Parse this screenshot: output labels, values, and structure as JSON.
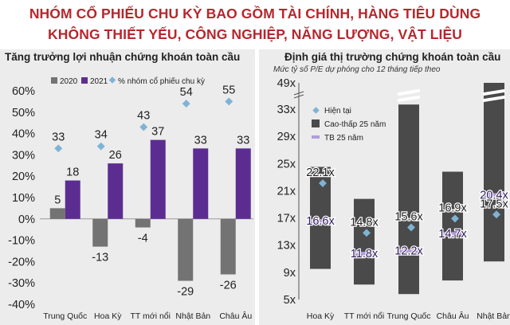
{
  "headline": {
    "line1": "NHÓM CỔ PHIẾU CHU KỲ BAO GỒM TÀI CHÍNH, HÀNG TIÊU DÙNG",
    "line2": "KHÔNG THIẾT YẾU, CÔNG NGHIỆP, NĂNG LƯỢNG, VẬT LIỆU"
  },
  "colors": {
    "headline": "#b5272d",
    "bar_2020": "#737373",
    "bar_2021": "#5c2d91",
    "marker": "#7fb3d5",
    "range_bar": "#4a4a4a",
    "avg": "#b39ddb",
    "panel_bg": "#ececec"
  },
  "chart_data": [
    {
      "type": "bar",
      "title": "Tăng trưởng lợi nhuận chứng khoán toàn cầu",
      "categories": [
        "Trung Quốc",
        "Hoa Kỳ",
        "TT mới nổi",
        "Nhật Bản",
        "Châu Âu"
      ],
      "series": [
        {
          "name": "2020",
          "values": [
            5,
            -13,
            -4,
            -29,
            -26
          ]
        },
        {
          "name": "2021",
          "values": [
            18,
            26,
            37,
            33,
            33
          ]
        },
        {
          "name": "% nhóm cổ phiếu chu kỳ",
          "kind": "marker",
          "values": [
            33,
            34,
            43,
            54,
            55
          ]
        }
      ],
      "ylim": [
        -40,
        60
      ],
      "yticks": [
        "60%",
        "50%",
        "40%",
        "30%",
        "20%",
        "10%",
        "0%",
        "-10%",
        "-20%",
        "-30%",
        "-40%"
      ],
      "legend_position": "top"
    },
    {
      "type": "range",
      "title": "Định giá thị trường chứng khoán toàn cầu",
      "subtitle": "Mức tỷ số P/E dự phóng cho 12 tháng tiếp theo",
      "categories": [
        "Hoa Kỳ",
        "TT mới nổi",
        "Trung Quốc",
        "Châu Âu",
        "Nhật Bản"
      ],
      "range_low": [
        9.5,
        7.2,
        5.8,
        7.8,
        10.6
      ],
      "range_high": [
        24.5,
        19.8,
        35.8,
        23.8,
        49
      ],
      "current": [
        22.1,
        14.8,
        15.6,
        16.9,
        17.5
      ],
      "average": [
        16.6,
        11.8,
        12.2,
        14.7,
        20.4
      ],
      "current_labels": [
        "22.1x",
        "14.8x",
        "15.6x",
        "16.9x",
        "17.5x"
      ],
      "average_labels": [
        "16.6x",
        "11.8x",
        "12.2x",
        "14.7x",
        "20.4x"
      ],
      "legend": [
        "Hiện tại",
        "Cao-thấp 25 năm",
        "TB 25 năm"
      ],
      "yticks": [
        "49x",
        "33x",
        "29x",
        "25x",
        "21x",
        "17x",
        "13x",
        "9x",
        "5x"
      ],
      "ylim": [
        5,
        49
      ],
      "axis_break": true
    }
  ]
}
